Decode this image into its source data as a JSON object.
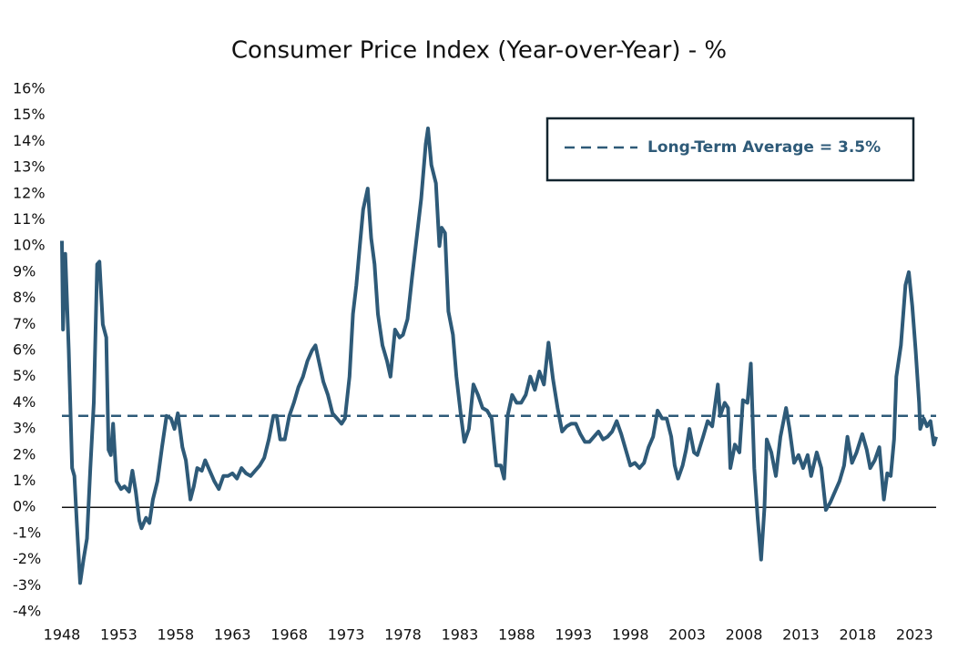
{
  "chart_data": {
    "type": "line",
    "title": "Consumer Price Index (Year-over-Year) - %",
    "x": [
      1948.0,
      1948.1,
      1948.3,
      1948.6,
      1948.9,
      1949.1,
      1949.3,
      1949.6,
      1949.9,
      1950.2,
      1950.5,
      1950.8,
      1951.1,
      1951.3,
      1951.6,
      1951.9,
      1952.1,
      1952.3,
      1952.5,
      1952.8,
      1953.2,
      1953.5,
      1953.9,
      1954.2,
      1954.5,
      1954.8,
      1955.0,
      1955.4,
      1955.7,
      1956.0,
      1956.4,
      1956.8,
      1957.2,
      1957.6,
      1957.9,
      1958.2,
      1958.6,
      1958.9,
      1959.3,
      1959.6,
      1959.9,
      1960.3,
      1960.6,
      1961.0,
      1961.4,
      1961.8,
      1962.2,
      1962.6,
      1963.0,
      1963.4,
      1963.8,
      1964.2,
      1964.6,
      1965.0,
      1965.4,
      1965.8,
      1966.2,
      1966.6,
      1966.9,
      1967.2,
      1967.6,
      1968.0,
      1968.4,
      1968.8,
      1969.2,
      1969.6,
      1970.0,
      1970.3,
      1970.6,
      1971.0,
      1971.4,
      1971.8,
      1972.2,
      1972.6,
      1972.9,
      1973.3,
      1973.6,
      1973.9,
      1974.2,
      1974.5,
      1974.9,
      1975.2,
      1975.5,
      1975.8,
      1976.2,
      1976.6,
      1976.9,
      1977.3,
      1977.7,
      1978.0,
      1978.4,
      1978.8,
      1979.2,
      1979.6,
      1980.0,
      1980.2,
      1980.5,
      1980.9,
      1981.2,
      1981.4,
      1981.7,
      1982.0,
      1982.4,
      1982.7,
      1983.1,
      1983.4,
      1983.8,
      1984.2,
      1984.6,
      1985.0,
      1985.4,
      1985.8,
      1986.2,
      1986.6,
      1986.9,
      1987.2,
      1987.6,
      1988.0,
      1988.4,
      1988.8,
      1989.2,
      1989.6,
      1990.0,
      1990.4,
      1990.8,
      1991.2,
      1991.6,
      1992.0,
      1992.4,
      1992.8,
      1993.2,
      1993.6,
      1994.0,
      1994.4,
      1994.8,
      1995.2,
      1995.6,
      1996.0,
      1996.4,
      1996.8,
      1997.2,
      1997.6,
      1998.0,
      1998.4,
      1998.8,
      1999.2,
      1999.6,
      2000.0,
      2000.4,
      2000.8,
      2001.2,
      2001.6,
      2001.9,
      2002.2,
      2002.6,
      2002.9,
      2003.2,
      2003.6,
      2003.9,
      2004.4,
      2004.8,
      2005.2,
      2005.7,
      2005.9,
      2006.3,
      2006.6,
      2006.8,
      2007.2,
      2007.6,
      2007.9,
      2008.3,
      2008.6,
      2008.9,
      2009.2,
      2009.5,
      2009.8,
      2010.0,
      2010.4,
      2010.8,
      2011.2,
      2011.7,
      2012.0,
      2012.4,
      2012.8,
      2013.2,
      2013.6,
      2013.9,
      2014.4,
      2014.8,
      2015.2,
      2015.6,
      2015.9,
      2016.4,
      2016.8,
      2017.1,
      2017.5,
      2017.9,
      2018.4,
      2018.8,
      2019.1,
      2019.5,
      2019.9,
      2020.3,
      2020.6,
      2020.9,
      2021.2,
      2021.4,
      2021.8,
      2022.2,
      2022.5,
      2022.8,
      2023.1,
      2023.4,
      2023.5,
      2023.8,
      2024.1,
      2024.4,
      2024.7,
      2024.9
    ],
    "series": [
      {
        "color": "#2e5a78",
        "values": [
          10.2,
          6.8,
          9.7,
          6,
          1.5,
          1.2,
          -0.5,
          -2.9,
          -2.0,
          -1.2,
          1.5,
          4,
          9.3,
          9.4,
          7,
          6.5,
          2.2,
          2.0,
          3.2,
          1.0,
          0.7,
          0.8,
          0.6,
          1.4,
          0.6,
          -0.5,
          -0.8,
          -0.4,
          -0.6,
          0.3,
          1.0,
          2.3,
          3.5,
          3.4,
          3.0,
          3.6,
          2.3,
          1.8,
          0.3,
          0.8,
          1.5,
          1.4,
          1.8,
          1.4,
          1.0,
          0.7,
          1.2,
          1.2,
          1.3,
          1.1,
          1.5,
          1.3,
          1.2,
          1.4,
          1.6,
          1.9,
          2.6,
          3.5,
          3.5,
          2.6,
          2.6,
          3.5,
          4.0,
          4.6,
          5.0,
          5.6,
          6.0,
          6.2,
          5.6,
          4.8,
          4.3,
          3.6,
          3.4,
          3.2,
          3.4,
          5.0,
          7.4,
          8.5,
          10.0,
          11.4,
          12.2,
          10.3,
          9.3,
          7.4,
          6.2,
          5.6,
          5.0,
          6.8,
          6.5,
          6.6,
          7.2,
          8.8,
          10.3,
          11.8,
          13.9,
          14.5,
          13.1,
          12.4,
          10.0,
          10.7,
          10.5,
          7.5,
          6.6,
          5.0,
          3.5,
          2.5,
          3.0,
          4.7,
          4.3,
          3.8,
          3.7,
          3.4,
          1.6,
          1.6,
          1.1,
          3.5,
          4.3,
          4.0,
          4.0,
          4.3,
          5.0,
          4.5,
          5.2,
          4.7,
          6.3,
          4.9,
          3.8,
          2.9,
          3.1,
          3.2,
          3.2,
          2.8,
          2.5,
          2.5,
          2.7,
          2.9,
          2.6,
          2.7,
          2.9,
          3.3,
          2.8,
          2.2,
          1.6,
          1.7,
          1.5,
          1.7,
          2.3,
          2.7,
          3.7,
          3.4,
          3.4,
          2.7,
          1.6,
          1.1,
          1.6,
          2.2,
          3.0,
          2.1,
          2.0,
          2.7,
          3.3,
          3.1,
          4.7,
          3.5,
          4.0,
          3.8,
          1.5,
          2.4,
          2.1,
          4.1,
          4.0,
          5.5,
          1.5,
          -0.4,
          -2.0,
          0.0,
          2.6,
          2.1,
          1.2,
          2.7,
          3.8,
          3.0,
          1.7,
          2.0,
          1.5,
          2.0,
          1.2,
          2.1,
          1.5,
          -0.1,
          0.2,
          0.5,
          1.0,
          1.6,
          2.7,
          1.7,
          2.1,
          2.8,
          2.2,
          1.5,
          1.8,
          2.3,
          0.3,
          1.3,
          1.2,
          2.6,
          5.0,
          6.2,
          8.5,
          9.0,
          7.7,
          6.0,
          4.0,
          3.0,
          3.4,
          3.1,
          3.3,
          2.4,
          2.7
        ]
      }
    ],
    "reference_line": {
      "value": 3.5,
      "label": "Long-Term Average = 3.5%",
      "color": "#2e5a78"
    },
    "xlim": [
      1948,
      2024.9
    ],
    "xticks": [
      1948,
      1953,
      1958,
      1963,
      1968,
      1973,
      1978,
      1983,
      1988,
      1993,
      1998,
      2003,
      2008,
      2013,
      2018,
      2023
    ],
    "ylim": [
      -4,
      16
    ],
    "yticks": [
      {
        "value": -4,
        "label": "-4%"
      },
      {
        "value": -3,
        "label": "-3%"
      },
      {
        "value": -2,
        "label": "-2%"
      },
      {
        "value": -1,
        "label": "-1%"
      },
      {
        "value": 0,
        "label": "0%"
      },
      {
        "value": 1,
        "label": "1%"
      },
      {
        "value": 2,
        "label": "2%"
      },
      {
        "value": 3,
        "label": "3%"
      },
      {
        "value": 4,
        "label": "4%"
      },
      {
        "value": 5,
        "label": "5%"
      },
      {
        "value": 6,
        "label": "6%"
      },
      {
        "value": 7,
        "label": "7%"
      },
      {
        "value": 8,
        "label": "8%"
      },
      {
        "value": 9,
        "label": "9%"
      },
      {
        "value": 10,
        "label": "10%"
      },
      {
        "value": 11,
        "label": "11%"
      },
      {
        "value": 12,
        "label": "12%"
      },
      {
        "value": 13,
        "label": "13%"
      },
      {
        "value": 14,
        "label": "14%"
      },
      {
        "value": 15,
        "label": "15%"
      },
      {
        "value": 16,
        "label": "16%"
      }
    ],
    "grid": false
  }
}
